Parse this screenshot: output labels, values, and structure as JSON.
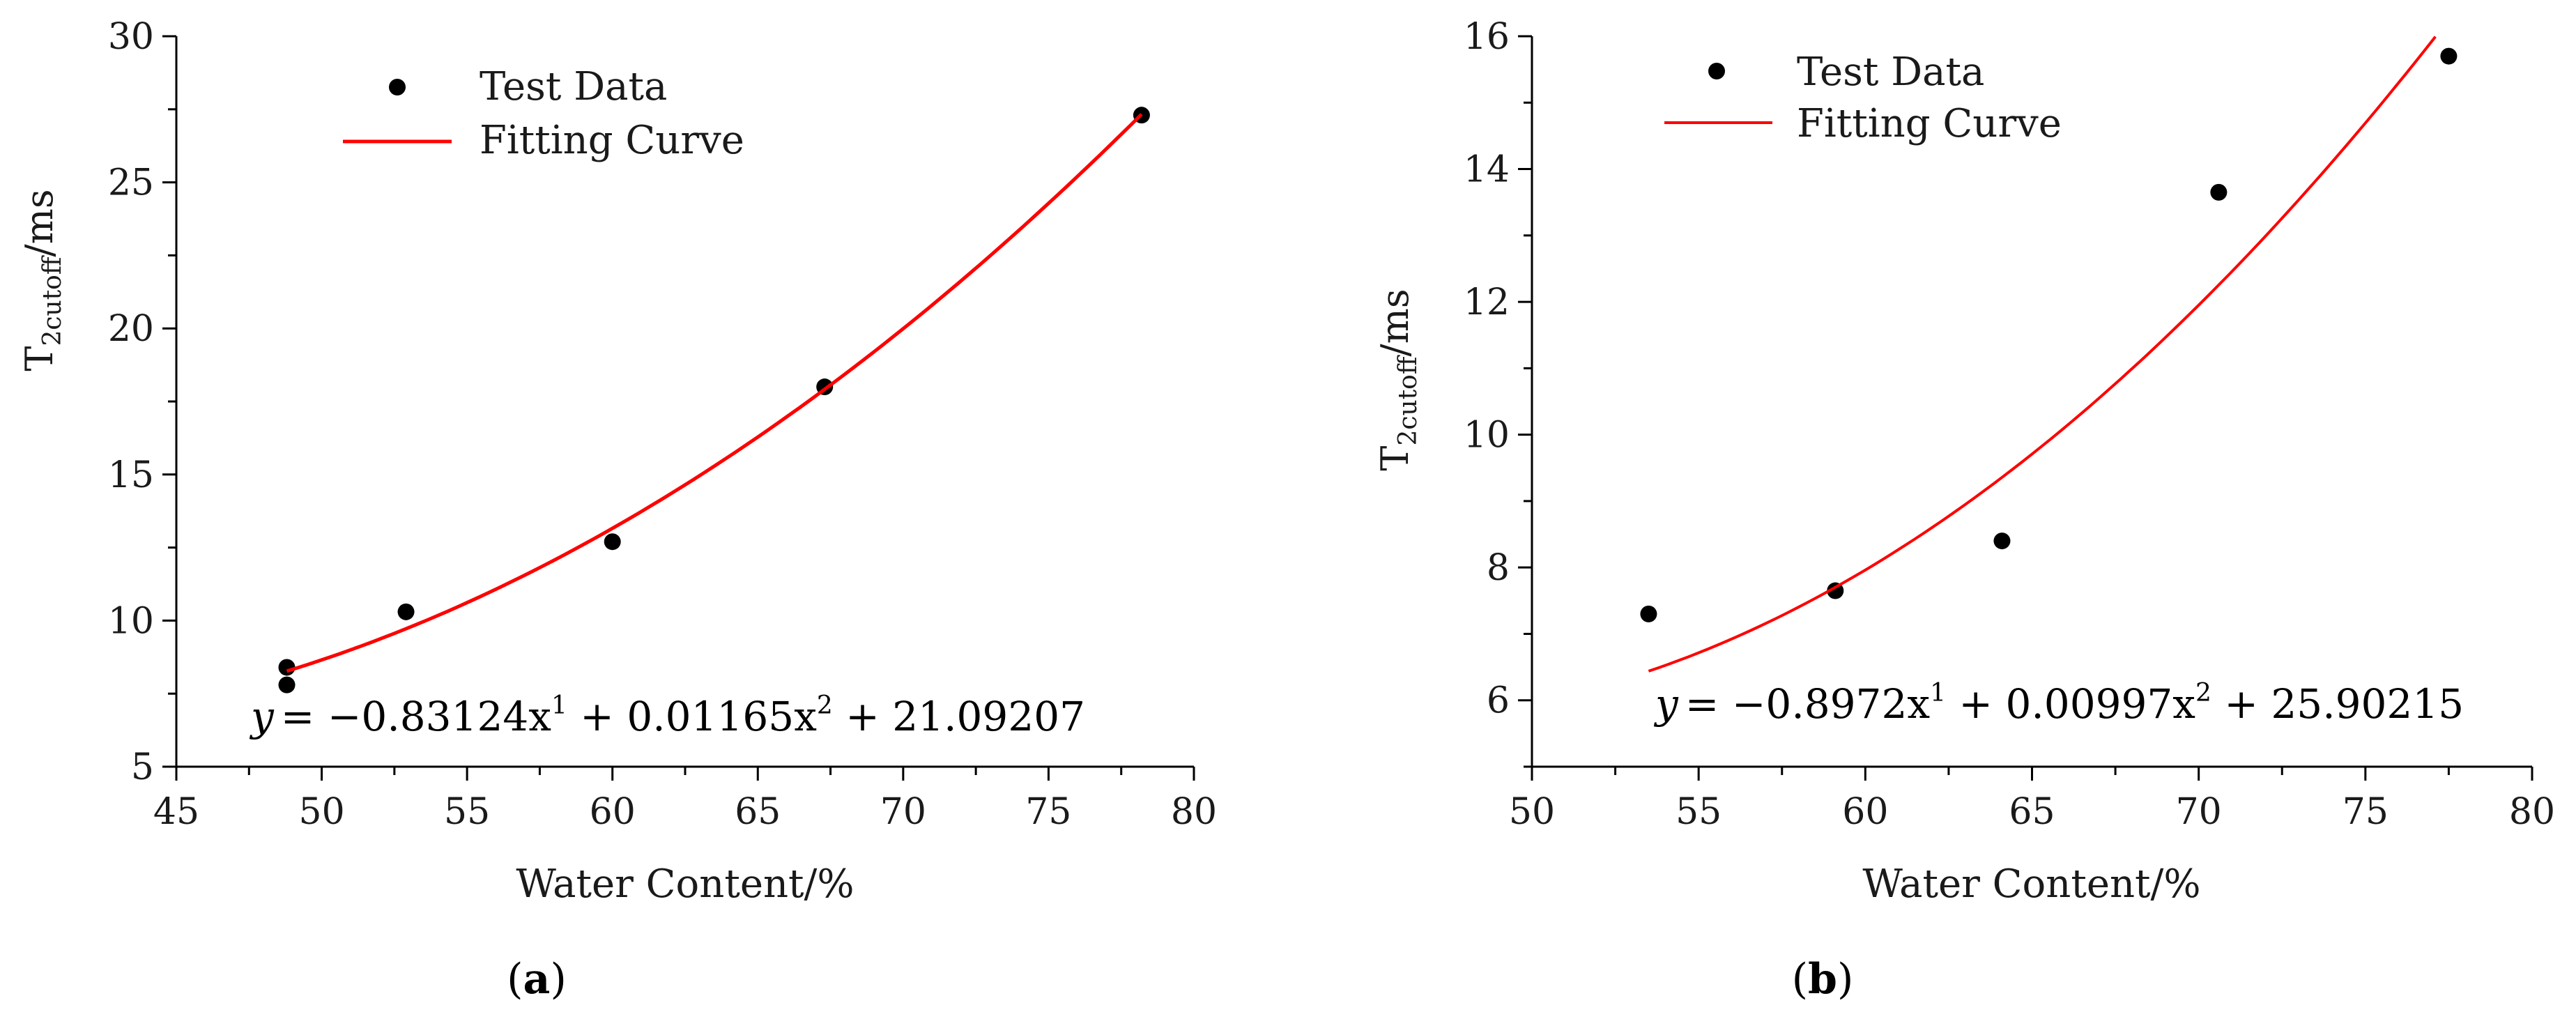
{
  "panels": [
    {
      "caption": "(a)",
      "caption_letter": "a",
      "legend": {
        "points_label": "Test Data",
        "curve_label": "Fitting Curve"
      },
      "equation": "y = −0.83124x¹ + 0.01165x² + 21.09207",
      "equation_parts": {
        "lhs": "y",
        "rhs": "= −0.83124x",
        "p1": "1",
        "mid": " + 0.01165x",
        "p2": "2",
        "tail": " + 21.09207"
      }
    },
    {
      "caption": "(b)",
      "caption_letter": "b",
      "legend": {
        "points_label": "Test Data",
        "curve_label": "Fitting Curve"
      },
      "equation": "y = −0.8972x¹ + 0.00997x² + 25.90215",
      "equation_parts": {
        "lhs": "y",
        "rhs": "= −0.8972x",
        "p1": "1",
        "mid": " + 0.00997x",
        "p2": "2",
        "tail": " + 25.90215"
      }
    }
  ],
  "chart_data": [
    {
      "type": "scatter",
      "xlabel": "Water Content/%",
      "ylabel": "T2cutoff/ms",
      "ylabel_parts": {
        "main": "T",
        "sub": "2cutoff",
        "unit": "/ms"
      },
      "xlim": [
        45,
        80
      ],
      "ylim": [
        5,
        30
      ],
      "xticks": [
        45,
        50,
        55,
        60,
        65,
        70,
        75,
        80
      ],
      "yticks": [
        5,
        10,
        15,
        20,
        25,
        30
      ],
      "grid": false,
      "legend_position": "top-left",
      "series": [
        {
          "name": "Test Data",
          "kind": "points",
          "color": "#000000",
          "x": [
            48.8,
            48.8,
            52.9,
            60.0,
            67.3,
            78.2
          ],
          "y": [
            8.4,
            7.8,
            10.3,
            12.7,
            18.0,
            27.3
          ]
        },
        {
          "name": "Fitting Curve",
          "kind": "curve",
          "color": "#ff0000",
          "coefficients": {
            "x1": -0.83124,
            "x2": 0.01165,
            "c": 21.09207
          },
          "x_range": [
            48.8,
            78.2
          ]
        }
      ]
    },
    {
      "type": "scatter",
      "xlabel": "Water Content/%",
      "ylabel": "T2cutoff/ms",
      "ylabel_parts": {
        "main": "T",
        "sub": "2cutoff",
        "unit": "/ms"
      },
      "xlim": [
        50,
        80
      ],
      "ylim": [
        5,
        16
      ],
      "xticks": [
        50,
        55,
        60,
        65,
        70,
        75,
        80
      ],
      "yticks": [
        6,
        8,
        10,
        12,
        14,
        16
      ],
      "grid": false,
      "legend_position": "top-left",
      "series": [
        {
          "name": "Test Data",
          "kind": "points",
          "color": "#000000",
          "x": [
            53.5,
            59.1,
            64.1,
            70.6,
            77.5
          ],
          "y": [
            7.3,
            7.65,
            8.4,
            13.65,
            15.7
          ]
        },
        {
          "name": "Fitting Curve",
          "kind": "curve",
          "color": "#ff0000",
          "coefficients": {
            "x1": -0.8972,
            "x2": 0.00997,
            "c": 25.90215
          },
          "x_range": [
            53.5,
            77.1
          ]
        }
      ]
    }
  ]
}
